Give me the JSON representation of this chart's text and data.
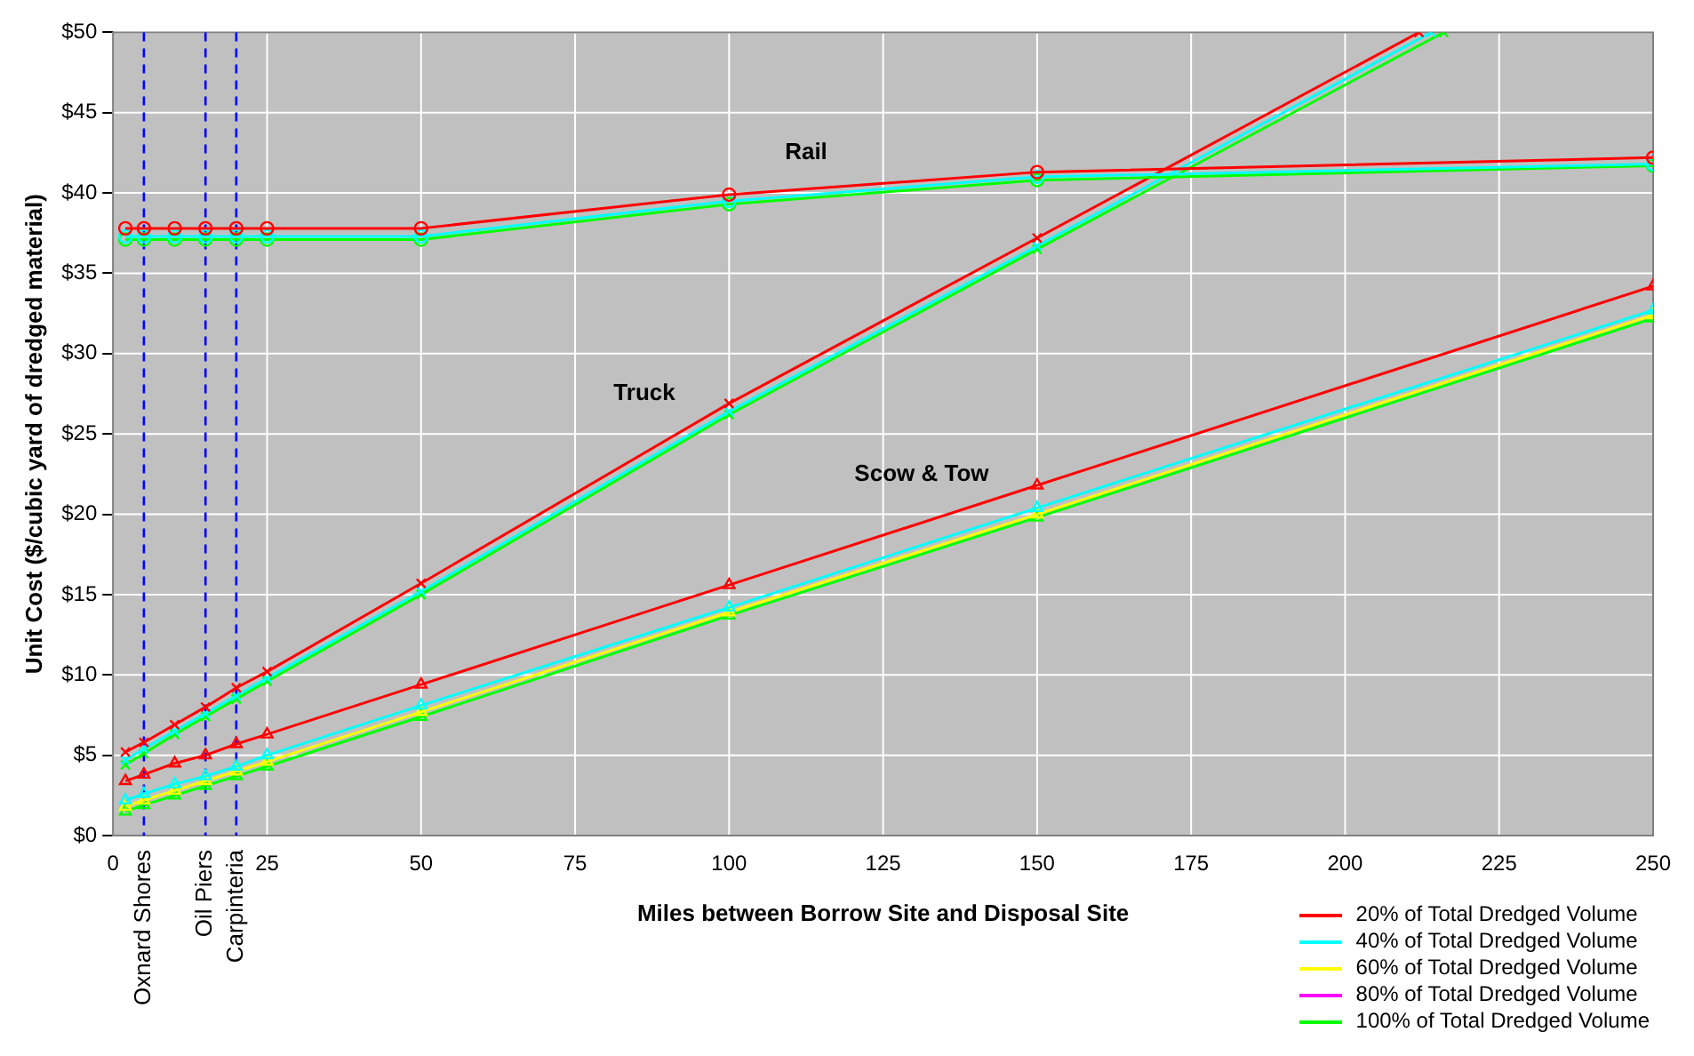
{
  "chart_data": {
    "type": "line",
    "xlabel": "Miles between Borrow Site and Disposal Site",
    "ylabel": "Unit Cost ($/cubic yard of dredged material)",
    "xlim": [
      0,
      250
    ],
    "xticks": [
      0,
      25,
      50,
      75,
      100,
      125,
      150,
      175,
      200,
      225,
      250
    ],
    "ylim": [
      0,
      50
    ],
    "yticks": [
      {
        "value": 0,
        "label": "$0"
      },
      {
        "value": 5,
        "label": "$5"
      },
      {
        "value": 10,
        "label": "$10"
      },
      {
        "value": 15,
        "label": "$15"
      },
      {
        "value": 20,
        "label": "$20"
      },
      {
        "value": 25,
        "label": "$25"
      },
      {
        "value": 30,
        "label": "$30"
      },
      {
        "value": 35,
        "label": "$35"
      },
      {
        "value": 40,
        "label": "$40"
      },
      {
        "value": 45,
        "label": "$45"
      },
      {
        "value": 50,
        "label": "$50"
      }
    ],
    "grid": true,
    "legend": "bottom right",
    "line_style": "solid",
    "series": [
      {
        "color": "#ff0000",
        "marker": "circle",
        "x": [
          2,
          5,
          10,
          15,
          20,
          25,
          50,
          100,
          150,
          250
        ],
        "values": [
          37.8,
          37.8,
          37.8,
          37.8,
          37.8,
          37.8,
          37.8,
          39.9,
          41.3,
          42.2
        ]
      },
      {
        "color": "#00ffff",
        "marker": "circle",
        "x": [
          2,
          5,
          10,
          15,
          20,
          25,
          50,
          100,
          150,
          250
        ],
        "values": [
          37.3,
          37.3,
          37.3,
          37.3,
          37.3,
          37.3,
          37.3,
          39.5,
          41.0,
          41.8
        ]
      },
      {
        "color": "#00ff00",
        "marker": "circle",
        "x": [
          2,
          5,
          10,
          15,
          20,
          25,
          50,
          100,
          150,
          250
        ],
        "values": [
          37.1,
          37.1,
          37.1,
          37.1,
          37.1,
          37.1,
          37.1,
          39.3,
          40.8,
          41.7
        ]
      },
      {
        "color": "#ff0000",
        "marker": "cross",
        "x": [
          2,
          5,
          10,
          15,
          20,
          25,
          50,
          100,
          150,
          212
        ],
        "values": [
          5.2,
          5.8,
          6.9,
          8.0,
          9.2,
          10.2,
          15.7,
          26.9,
          37.2,
          50
        ]
      },
      {
        "color": "#00ffff",
        "marker": "cross",
        "x": [
          2,
          5,
          10,
          15,
          20,
          25,
          50,
          100,
          150,
          214
        ],
        "values": [
          4.7,
          5.4,
          6.5,
          7.6,
          8.7,
          9.8,
          15.2,
          26.4,
          36.7,
          50
        ]
      },
      {
        "color": "#00ff00",
        "marker": "cross",
        "x": [
          2,
          5,
          10,
          15,
          20,
          25,
          50,
          100,
          150,
          216
        ],
        "values": [
          4.4,
          5.1,
          6.3,
          7.4,
          8.5,
          9.6,
          15.0,
          26.2,
          36.5,
          50
        ]
      },
      {
        "name": "20% of Total Dredged Volume",
        "color": "#ff0000",
        "marker": "triangle",
        "x": [
          2,
          5,
          10,
          15,
          20,
          25,
          50,
          100,
          150,
          250
        ],
        "values": [
          3.4,
          3.8,
          4.5,
          5.0,
          5.7,
          6.3,
          9.4,
          15.6,
          21.8,
          34.2
        ]
      },
      {
        "name": "40% of Total Dredged Volume",
        "color": "#00ffff",
        "marker": "triangle",
        "x": [
          2,
          5,
          10,
          15,
          20,
          25,
          50,
          100,
          150,
          250
        ],
        "values": [
          2.2,
          2.6,
          3.2,
          3.7,
          4.3,
          5.0,
          8.1,
          14.2,
          20.4,
          32.7
        ]
      },
      {
        "name": "60% of Total Dredged Volume",
        "color": "#ffff00",
        "marker": "triangle",
        "x": [
          2,
          5,
          10,
          15,
          20,
          25,
          50,
          100,
          150,
          250
        ],
        "values": [
          1.8,
          2.2,
          2.8,
          3.4,
          4.0,
          4.6,
          7.7,
          13.9,
          20.0,
          32.4
        ]
      },
      {
        "name": "80% of Total Dredged Volume",
        "color": "#ff00ff",
        "marker": "triangle",
        "values": [
          null,
          null,
          null,
          null,
          null,
          null,
          null,
          null,
          null,
          null
        ]
      },
      {
        "name": "100% of Total Dredged Volume",
        "color": "#00ff00",
        "marker": "triangle",
        "x": [
          2,
          5,
          10,
          15,
          20,
          25,
          50,
          100,
          150,
          250
        ],
        "values": [
          1.5,
          1.9,
          2.5,
          3.1,
          3.7,
          4.3,
          7.4,
          13.7,
          19.8,
          32.2
        ]
      }
    ],
    "ref_lines": [
      {
        "axis": "x",
        "value": 5,
        "label": "Oxnard Shores",
        "color": "#0000ff",
        "line_style": "dashed"
      },
      {
        "axis": "x",
        "value": 15,
        "label": "Oil Piers",
        "color": "#0000ff",
        "line_style": "dashed"
      },
      {
        "axis": "x",
        "value": 20,
        "label": "Carpinteria",
        "color": "#0000ff",
        "line_style": "dashed"
      }
    ],
    "annotations": [
      "Rail",
      "Truck",
      "Scow & Tow"
    ]
  }
}
